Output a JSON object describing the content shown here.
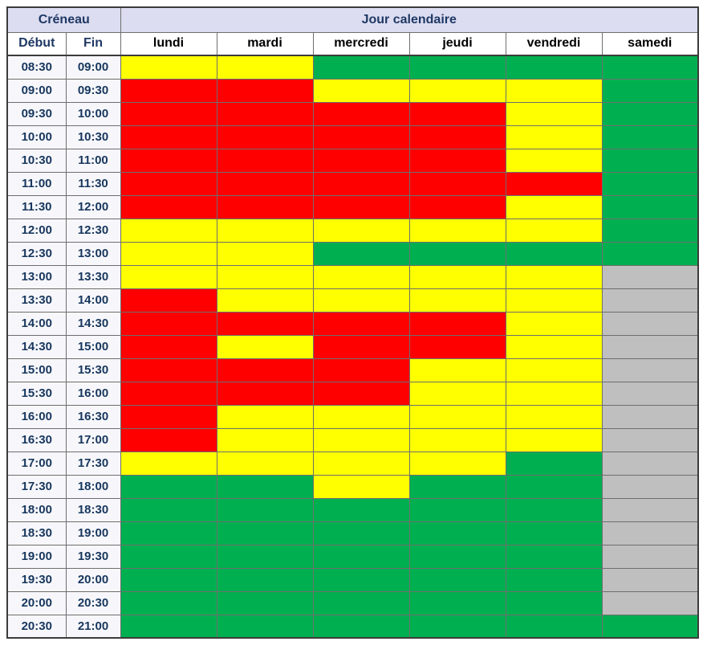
{
  "table": {
    "header": {
      "creneau": "Créneau",
      "jour": "Jour calendaire",
      "debut": "Début",
      "fin": "Fin",
      "days": [
        "lundi",
        "mardi",
        "mercredi",
        "jeudi",
        "vendredi",
        "samedi"
      ]
    },
    "time_slots": [
      {
        "debut": "08:30",
        "fin": "09:00"
      },
      {
        "debut": "09:00",
        "fin": "09:30"
      },
      {
        "debut": "09:30",
        "fin": "10:00"
      },
      {
        "debut": "10:00",
        "fin": "10:30"
      },
      {
        "debut": "10:30",
        "fin": "11:00"
      },
      {
        "debut": "11:00",
        "fin": "11:30"
      },
      {
        "debut": "11:30",
        "fin": "12:00"
      },
      {
        "debut": "12:00",
        "fin": "12:30"
      },
      {
        "debut": "12:30",
        "fin": "13:00"
      },
      {
        "debut": "13:00",
        "fin": "13:30"
      },
      {
        "debut": "13:30",
        "fin": "14:00"
      },
      {
        "debut": "14:00",
        "fin": "14:30"
      },
      {
        "debut": "14:30",
        "fin": "15:00"
      },
      {
        "debut": "15:00",
        "fin": "15:30"
      },
      {
        "debut": "15:30",
        "fin": "16:00"
      },
      {
        "debut": "16:00",
        "fin": "16:30"
      },
      {
        "debut": "16:30",
        "fin": "17:00"
      },
      {
        "debut": "17:00",
        "fin": "17:30"
      },
      {
        "debut": "17:30",
        "fin": "18:00"
      },
      {
        "debut": "18:00",
        "fin": "18:30"
      },
      {
        "debut": "18:30",
        "fin": "19:00"
      },
      {
        "debut": "19:00",
        "fin": "19:30"
      },
      {
        "debut": "19:30",
        "fin": "20:00"
      },
      {
        "debut": "20:00",
        "fin": "20:30"
      },
      {
        "debut": "20:30",
        "fin": "21:00"
      }
    ],
    "colors": {
      "header_bg": "#DCDDF1",
      "header_text": "#1F3864",
      "time_text": "#17365D",
      "day_text": "#000000",
      "border": "#6E6E6E"
    }
  },
  "chart_data": {
    "type": "heatmap",
    "title": "",
    "x_label": "Jour calendaire",
    "y_label": "Créneau",
    "x_categories": [
      "lundi",
      "mardi",
      "mercredi",
      "jeudi",
      "vendredi",
      "samedi"
    ],
    "y_categories": [
      "08:30-09:00",
      "09:00-09:30",
      "09:30-10:00",
      "10:00-10:30",
      "10:30-11:00",
      "11:00-11:30",
      "11:30-12:00",
      "12:00-12:30",
      "12:30-13:00",
      "13:00-13:30",
      "13:30-14:00",
      "14:00-14:30",
      "14:30-15:00",
      "15:00-15:30",
      "15:30-16:00",
      "16:00-16:30",
      "16:30-17:00",
      "17:00-17:30",
      "17:30-18:00",
      "18:00-18:30",
      "18:30-19:00",
      "19:00-19:30",
      "19:30-20:00",
      "20:00-20:30",
      "20:30-21:00"
    ],
    "values": [
      [
        "yellow",
        "yellow",
        "green",
        "green",
        "green",
        "green"
      ],
      [
        "red",
        "red",
        "yellow",
        "yellow",
        "yellow",
        "green"
      ],
      [
        "red",
        "red",
        "red",
        "red",
        "yellow",
        "green"
      ],
      [
        "red",
        "red",
        "red",
        "red",
        "yellow",
        "green"
      ],
      [
        "red",
        "red",
        "red",
        "red",
        "yellow",
        "green"
      ],
      [
        "red",
        "red",
        "red",
        "red",
        "red",
        "green"
      ],
      [
        "red",
        "red",
        "red",
        "red",
        "yellow",
        "green"
      ],
      [
        "yellow",
        "yellow",
        "yellow",
        "yellow",
        "yellow",
        "green"
      ],
      [
        "yellow",
        "yellow",
        "green",
        "green",
        "green",
        "green"
      ],
      [
        "yellow",
        "yellow",
        "yellow",
        "yellow",
        "yellow",
        "gray"
      ],
      [
        "red",
        "yellow",
        "yellow",
        "yellow",
        "yellow",
        "gray"
      ],
      [
        "red",
        "red",
        "red",
        "red",
        "yellow",
        "gray"
      ],
      [
        "red",
        "yellow",
        "red",
        "red",
        "yellow",
        "gray"
      ],
      [
        "red",
        "red",
        "red",
        "yellow",
        "yellow",
        "gray"
      ],
      [
        "red",
        "red",
        "red",
        "yellow",
        "yellow",
        "gray"
      ],
      [
        "red",
        "yellow",
        "yellow",
        "yellow",
        "yellow",
        "gray"
      ],
      [
        "red",
        "yellow",
        "yellow",
        "yellow",
        "yellow",
        "gray"
      ],
      [
        "yellow",
        "yellow",
        "yellow",
        "yellow",
        "green",
        "gray"
      ],
      [
        "green",
        "green",
        "yellow",
        "green",
        "green",
        "gray"
      ],
      [
        "green",
        "green",
        "green",
        "green",
        "green",
        "gray"
      ],
      [
        "green",
        "green",
        "green",
        "green",
        "green",
        "gray"
      ],
      [
        "green",
        "green",
        "green",
        "green",
        "green",
        "gray"
      ],
      [
        "green",
        "green",
        "green",
        "green",
        "green",
        "gray"
      ],
      [
        "green",
        "green",
        "green",
        "green",
        "green",
        "gray"
      ],
      [
        "green",
        "green",
        "green",
        "green",
        "green",
        "green"
      ]
    ],
    "color_map": {
      "red": "#FF0000",
      "yellow": "#FFFF00",
      "green": "#00B050",
      "gray": "#BFBFBF"
    }
  }
}
